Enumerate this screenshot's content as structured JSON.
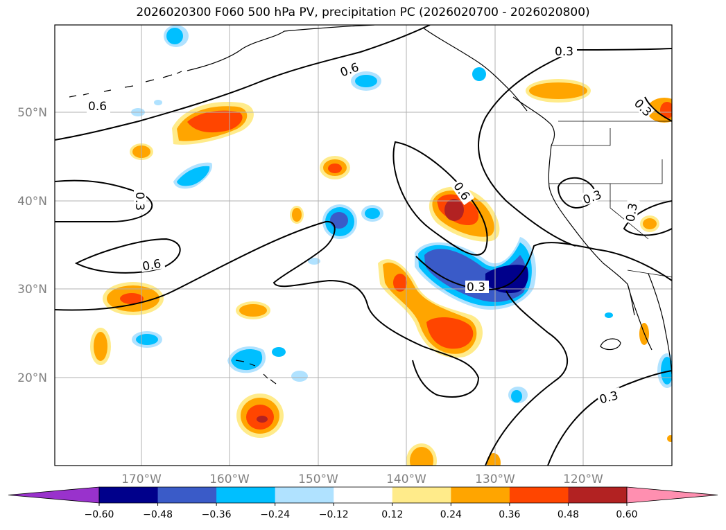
{
  "title": "2026020300 F060 500 hPa PV, precipitation PC (2026020700 - 2026020800)",
  "map": {
    "latitude_labels": [
      "50°N",
      "40°N",
      "30°N",
      "20°N"
    ],
    "longitude_labels": [
      "170°W",
      "160°W",
      "150°W",
      "140°W",
      "130°W",
      "120°W"
    ],
    "pv_contour_labels": [
      "0.6",
      "0.6",
      "0.3",
      "0.6",
      "0.6",
      "0.3",
      "0.3",
      "0.3",
      "0.3",
      "0.3",
      "0.3"
    ]
  },
  "colorbar": {
    "colors": [
      "#9932cc",
      "#00008b",
      "#3a5bc8",
      "#00bfff",
      "#b0e2ff",
      "#ffffff",
      "#ffeb8a",
      "#ffa500",
      "#ff4500",
      "#b22222",
      "#ff8fb0"
    ],
    "tick_labels": [
      "−0.60",
      "−0.48",
      "−0.36",
      "−0.24",
      "−0.12",
      "0.12",
      "0.24",
      "0.36",
      "0.48",
      "0.60"
    ]
  }
}
